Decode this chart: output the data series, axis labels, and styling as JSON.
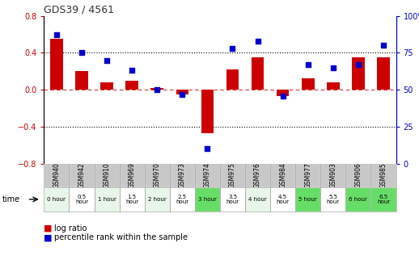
{
  "title": "GDS39 / 4561",
  "samples": [
    "GSM940",
    "GSM942",
    "GSM910",
    "GSM969",
    "GSM970",
    "GSM973",
    "GSM974",
    "GSM975",
    "GSM976",
    "GSM984",
    "GSM977",
    "GSM903",
    "GSM906",
    "GSM985"
  ],
  "time_labels": [
    "0 hour",
    "0.5\nhour",
    "1 hour",
    "1.5\nhour",
    "2 hour",
    "2.5\nhour",
    "3 hour",
    "3.5\nhour",
    "4 hour",
    "4.5\nhour",
    "5 hour",
    "5.5\nhour",
    "6 hour",
    "6.5\nhour"
  ],
  "time_bg_colors": [
    "#e8f5e9",
    "#ffffff",
    "#e8f5e9",
    "#ffffff",
    "#e8f5e9",
    "#ffffff",
    "#66dd66",
    "#ffffff",
    "#e8f5e9",
    "#ffffff",
    "#66dd66",
    "#ffffff",
    "#66dd66",
    "#66dd66"
  ],
  "log_ratio": [
    0.55,
    0.2,
    0.08,
    0.1,
    0.02,
    -0.05,
    -0.47,
    0.22,
    0.35,
    -0.07,
    0.12,
    0.08,
    0.35,
    0.35
  ],
  "percentile": [
    87,
    75,
    70,
    63,
    50,
    47,
    10,
    78,
    83,
    46,
    67,
    65,
    67,
    80
  ],
  "ylim_left": [
    -0.8,
    0.8
  ],
  "ylim_right": [
    0,
    100
  ],
  "yticks_left": [
    -0.8,
    -0.4,
    0.0,
    0.4,
    0.8
  ],
  "yticks_right": [
    0,
    25,
    50,
    75,
    100
  ],
  "bar_color": "#cc0000",
  "dot_color": "#0000cc",
  "left_axis_color": "#cc0000",
  "right_axis_color": "#0000cc",
  "gsm_bg": "#c8c8c8",
  "gsm_border": "#888888"
}
